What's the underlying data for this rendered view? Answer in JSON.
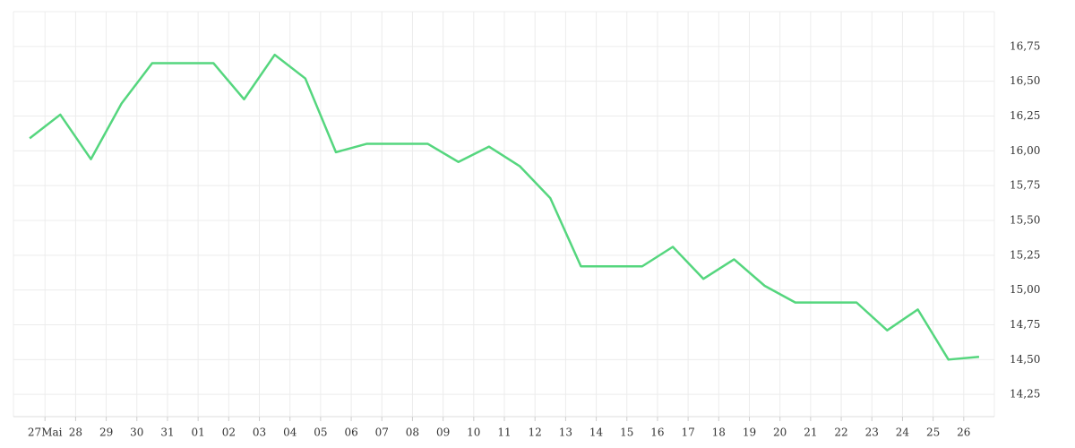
{
  "chart_data": {
    "type": "line",
    "x": [
      0,
      1,
      2,
      3,
      4,
      5,
      6,
      7,
      8,
      9,
      10,
      11,
      12,
      13,
      14,
      15,
      16,
      17,
      18,
      19,
      20,
      21,
      22,
      23,
      24,
      25,
      26,
      27,
      28,
      29,
      30,
      31
    ],
    "series": [
      {
        "color": "#55d67e",
        "values": [
          16.09,
          16.26,
          15.94,
          16.34,
          16.63,
          16.63,
          16.63,
          16.37,
          16.69,
          16.52,
          15.99,
          16.05,
          16.05,
          16.05,
          15.92,
          16.03,
          15.89,
          15.66,
          15.17,
          15.17,
          15.17,
          15.31,
          15.08,
          15.22,
          15.03,
          14.91,
          14.91,
          14.91,
          14.71,
          14.86,
          14.5,
          14.52
        ]
      }
    ],
    "xlim": [
      -0.53,
      31.5
    ],
    "xticks": [
      {
        "value": 0.5,
        "label": "27Mai"
      },
      {
        "value": 1.5,
        "label": "28"
      },
      {
        "value": 2.5,
        "label": "29"
      },
      {
        "value": 3.5,
        "label": "30"
      },
      {
        "value": 4.5,
        "label": "31"
      },
      {
        "value": 5.5,
        "label": "01"
      },
      {
        "value": 6.5,
        "label": "02"
      },
      {
        "value": 7.5,
        "label": "03"
      },
      {
        "value": 8.5,
        "label": "04"
      },
      {
        "value": 9.5,
        "label": "05"
      },
      {
        "value": 10.5,
        "label": "06"
      },
      {
        "value": 11.5,
        "label": "07"
      },
      {
        "value": 12.5,
        "label": "08"
      },
      {
        "value": 13.5,
        "label": "09"
      },
      {
        "value": 14.5,
        "label": "10"
      },
      {
        "value": 15.5,
        "label": "11"
      },
      {
        "value": 16.5,
        "label": "12"
      },
      {
        "value": 17.5,
        "label": "13"
      },
      {
        "value": 18.5,
        "label": "14"
      },
      {
        "value": 19.5,
        "label": "15"
      },
      {
        "value": 20.5,
        "label": "16"
      },
      {
        "value": 21.5,
        "label": "17"
      },
      {
        "value": 22.5,
        "label": "18"
      },
      {
        "value": 23.5,
        "label": "19"
      },
      {
        "value": 24.5,
        "label": "20"
      },
      {
        "value": 25.5,
        "label": "21"
      },
      {
        "value": 26.5,
        "label": "22"
      },
      {
        "value": 27.5,
        "label": "23"
      },
      {
        "value": 28.5,
        "label": "24"
      },
      {
        "value": 29.5,
        "label": "25"
      },
      {
        "value": 30.5,
        "label": "26"
      }
    ],
    "ylim": [
      14.09,
      17.0
    ],
    "yticks": [
      {
        "value": 14.25,
        "label": "14,25"
      },
      {
        "value": 14.5,
        "label": "14,50"
      },
      {
        "value": 14.75,
        "label": "14,75"
      },
      {
        "value": 15.0,
        "label": "15,00"
      },
      {
        "value": 15.25,
        "label": "15,25"
      },
      {
        "value": 15.5,
        "label": "15,50"
      },
      {
        "value": 15.75,
        "label": "15,75"
      },
      {
        "value": 16.0,
        "label": "16,00"
      },
      {
        "value": 16.25,
        "label": "16,25"
      },
      {
        "value": 16.5,
        "label": "16,50"
      },
      {
        "value": 16.75,
        "label": "16,75"
      }
    ],
    "grid": true
  }
}
